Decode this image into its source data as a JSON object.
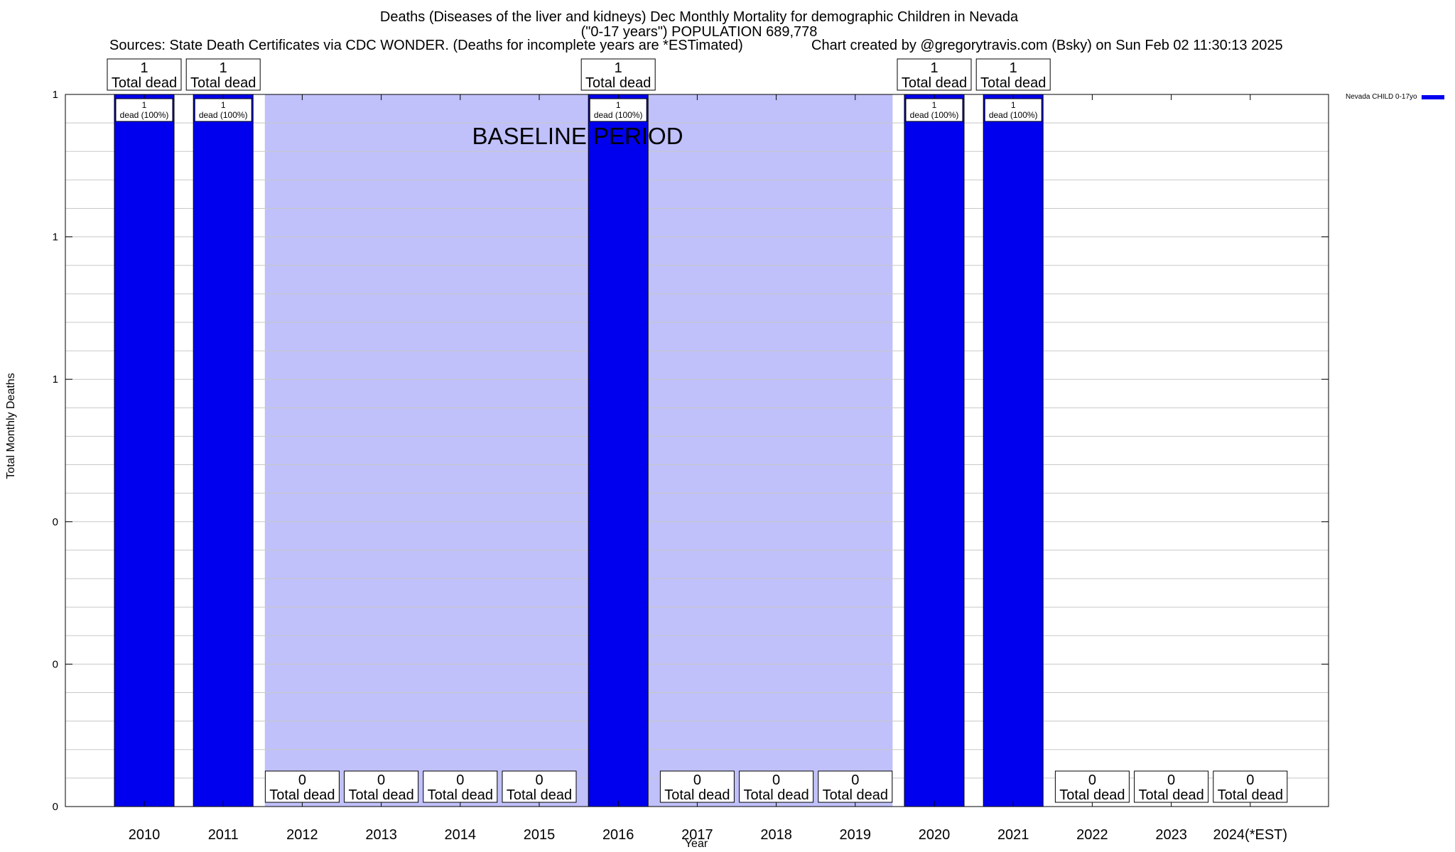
{
  "title": {
    "line1": "Deaths (Diseases of the liver and kidneys) Dec Monthly Mortality for demographic Children in Nevada",
    "line2": "(\"0-17 years\") POPULATION 689,778",
    "sources": "Sources: State Death Certificates via CDC WONDER. (Deaths for incomplete years are *ESTimated)",
    "credit": "Chart created by @gregorytravis.com (Bsky) on Sun Feb 02 11:30:13 2025"
  },
  "colors": {
    "bar": "#0000ee",
    "baseline_shade": "#c0c0fa",
    "grid": "#c8c8c8"
  },
  "chart_data": {
    "type": "bar",
    "categories": [
      "2010",
      "2011",
      "2012",
      "2013",
      "2014",
      "2015",
      "2016",
      "2017",
      "2018",
      "2019",
      "2020",
      "2021",
      "2022",
      "2023",
      "2024(*EST)"
    ],
    "series": [
      {
        "name": "Nevada CHILD 0-17yo",
        "values": [
          1,
          1,
          0,
          0,
          0,
          0,
          1,
          0,
          0,
          0,
          1,
          1,
          0,
          0,
          0
        ]
      }
    ],
    "top_labels": [
      "1",
      "1",
      "0",
      "0",
      "0",
      "0",
      "1",
      "0",
      "0",
      "0",
      "1",
      "1",
      "0",
      "0",
      "0"
    ],
    "top_label_suffix": "Total dead",
    "inner_labels": [
      "1",
      "1",
      "",
      "",
      "",
      "",
      "1",
      "",
      "",
      "",
      "1",
      "1",
      "",
      "",
      ""
    ],
    "inner_label_suffix": "dead (100%)",
    "xlabel": "Year",
    "ylabel": "Total Monthly Deaths",
    "ylim": [
      0,
      1
    ],
    "yticks": [
      {
        "value": 0,
        "label": "0"
      },
      {
        "value": 0.2,
        "label": "0"
      },
      {
        "value": 0.4,
        "label": "0"
      },
      {
        "value": 0.6,
        "label": "1"
      },
      {
        "value": 0.8,
        "label": "1"
      },
      {
        "value": 1.0,
        "label": "1"
      }
    ],
    "baseline_period": {
      "label": "BASELINE PERIOD",
      "from": "2012",
      "to": "2019"
    },
    "grid": true,
    "legend": "top-right"
  }
}
